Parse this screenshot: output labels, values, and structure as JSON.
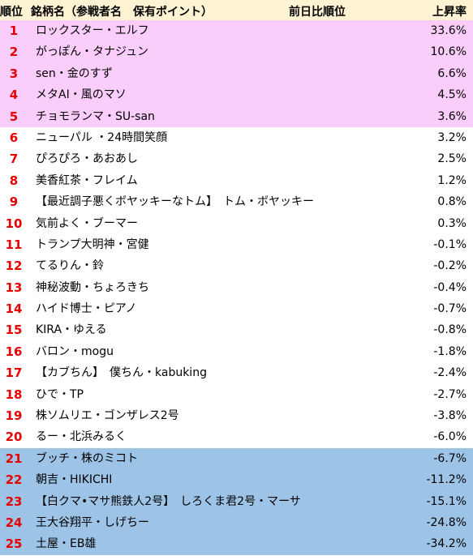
{
  "header": {
    "rank_label": "順位",
    "name_label": "銘柄名（参戦者名　保有ポイント）",
    "prev_rank_label": "前日比順位",
    "rate_label": "上昇率"
  },
  "colors": {
    "top_band": "#fbcdfa",
    "bottom_band": "#9dc3e6",
    "rank_text": "#e60000",
    "header_bg": "#fdf2d2"
  },
  "rows": [
    {
      "rank": "1",
      "name": "ロックスター・エルフ",
      "rate": "33.6%",
      "band": "top"
    },
    {
      "rank": "2",
      "name": "がっぽん・タナジュン",
      "rate": "10.6%",
      "band": "top"
    },
    {
      "rank": "3",
      "name": "sen・金のすず",
      "rate": "6.6%",
      "band": "top"
    },
    {
      "rank": "4",
      "name": "メタAI・風のマソ",
      "rate": "4.5%",
      "band": "top"
    },
    {
      "rank": "5",
      "name": "チョモランマ・SU-san",
      "rate": "3.6%",
      "band": "top"
    },
    {
      "rank": "6",
      "name": "ニューパル ・24時間笑顔",
      "rate": "3.2%",
      "band": "none"
    },
    {
      "rank": "7",
      "name": "ぴろぴろ・あおあし",
      "rate": "2.5%",
      "band": "none"
    },
    {
      "rank": "8",
      "name": "美香紅茶・フレイム",
      "rate": "1.2%",
      "band": "none"
    },
    {
      "rank": "9",
      "name": "【最近調子悪くボヤッキーなトム】　トム・ボヤッキー",
      "rate": "0.8%",
      "band": "none"
    },
    {
      "rank": "10",
      "name": "気前よく・ブーマー",
      "rate": "0.3%",
      "band": "none"
    },
    {
      "rank": "11",
      "name": "トランプ大明神・宮健",
      "rate": "-0.1%",
      "band": "none"
    },
    {
      "rank": "12",
      "name": "てるりん・鈴",
      "rate": "-0.2%",
      "band": "none"
    },
    {
      "rank": "13",
      "name": "神秘波動・ちょろきち",
      "rate": "-0.4%",
      "band": "none"
    },
    {
      "rank": "14",
      "name": "ハイド博士・ピアノ",
      "rate": "-0.7%",
      "band": "none"
    },
    {
      "rank": "15",
      "name": "KIRA・ゆえる",
      "rate": "-0.8%",
      "band": "none"
    },
    {
      "rank": "16",
      "name": "バロン・mogu",
      "rate": "-1.8%",
      "band": "none"
    },
    {
      "rank": "17",
      "name": "【カブちん】　僕ちん・kabuking",
      "rate": "-2.4%",
      "band": "none"
    },
    {
      "rank": "18",
      "name": "ひで・TP",
      "rate": "-2.7%",
      "band": "none"
    },
    {
      "rank": "19",
      "name": "株ソムリエ・ゴンザレス2号",
      "rate": "-3.8%",
      "band": "none"
    },
    {
      "rank": "20",
      "name": "るー・北浜みるく",
      "rate": "-6.0%",
      "band": "none"
    },
    {
      "rank": "21",
      "name": "ブッチ・株のミコト",
      "rate": "-6.7%",
      "band": "bottom"
    },
    {
      "rank": "22",
      "name": "朝吉・HIKICHI",
      "rate": "-11.2%",
      "band": "bottom"
    },
    {
      "rank": "23",
      "name": "【白クマ•マサ熊鉄人2号】　しろくま君2号・マーサ",
      "rate": "-15.1%",
      "band": "bottom"
    },
    {
      "rank": "24",
      "name": "王大谷翔平・しげちー",
      "rate": "-24.8%",
      "band": "bottom"
    },
    {
      "rank": "25",
      "name": "土屋・EB雄",
      "rate": "-34.2%",
      "band": "bottom"
    }
  ]
}
